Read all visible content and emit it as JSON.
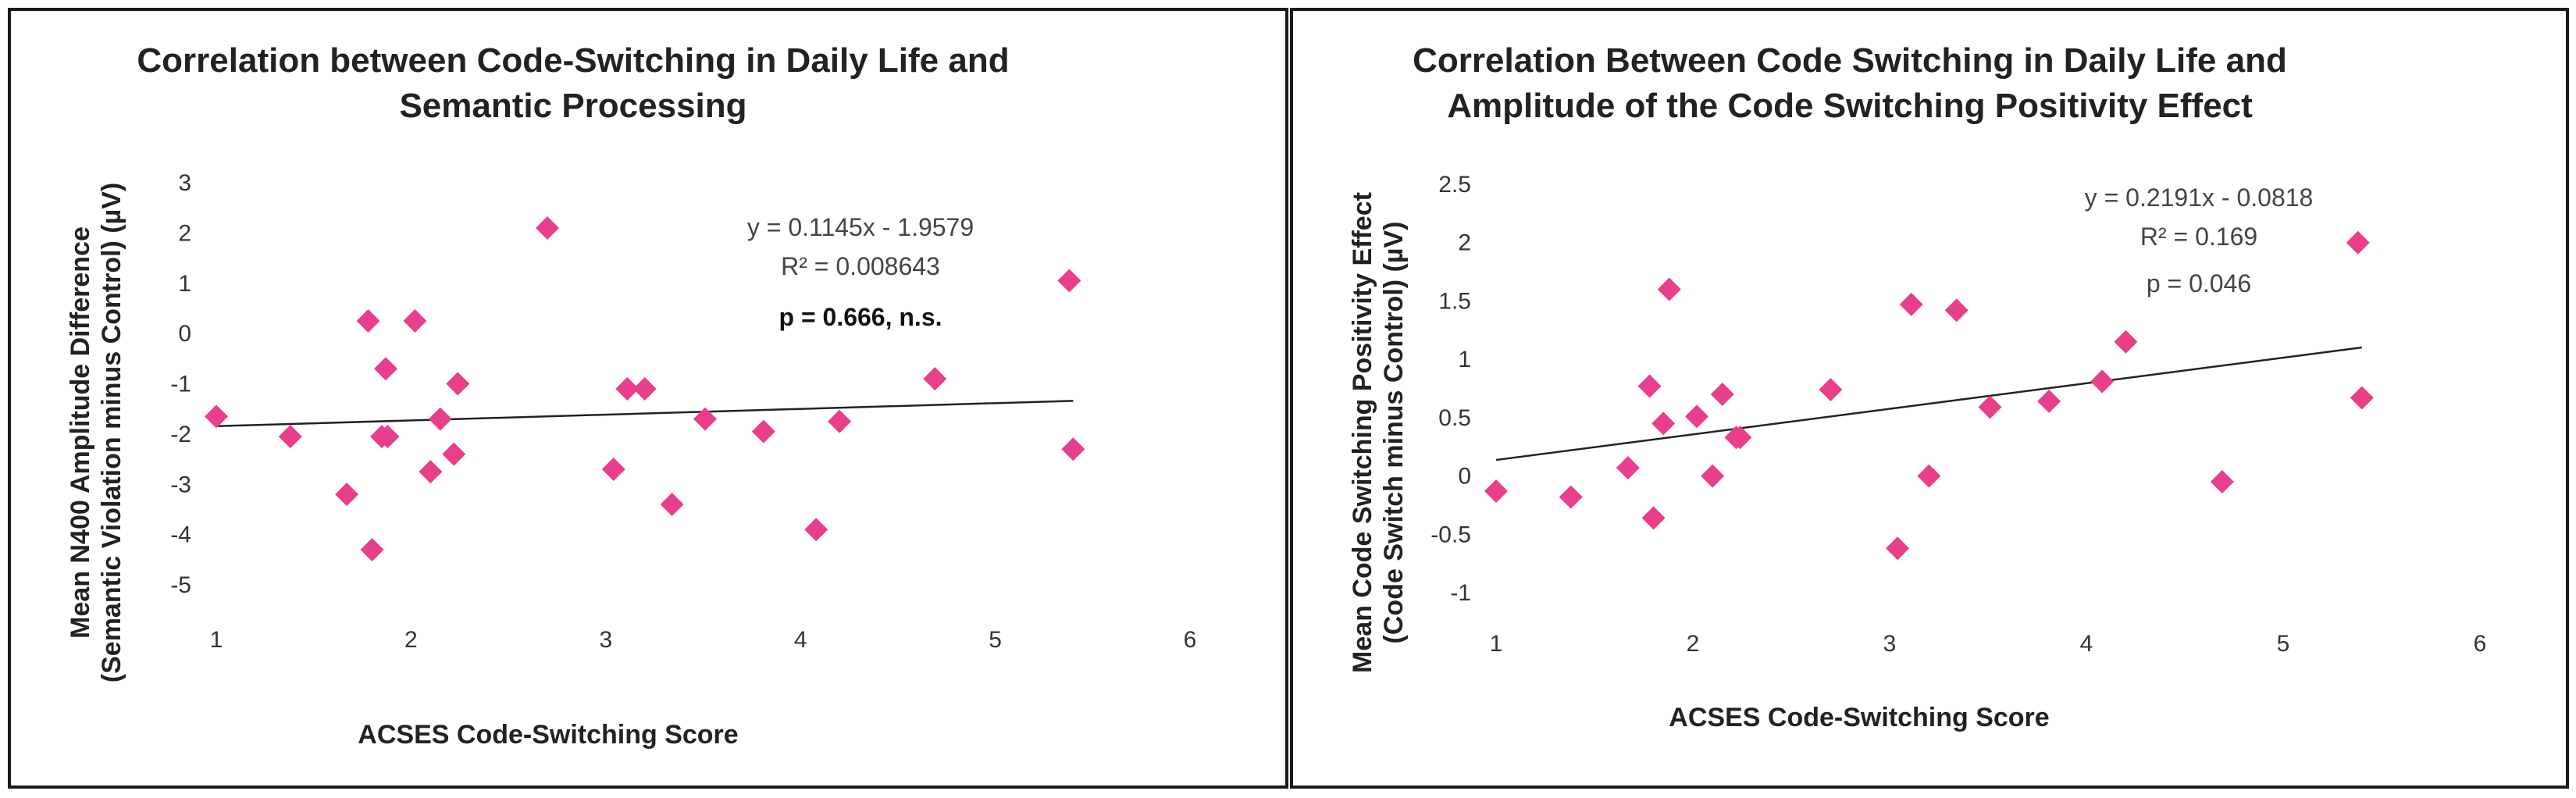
{
  "chart_data": [
    {
      "type": "scatter",
      "title": [
        "Correlation between Code-Switching in Daily Life and",
        "Semantic Processing"
      ],
      "xlabel": "ACSES Code-Switching Score",
      "ylabel": [
        "Mean N400 Amplitude Difference",
        "(Semantic Violation minus Control) (µV)"
      ],
      "xlim": [
        1,
        6
      ],
      "ylim": [
        -5,
        3
      ],
      "xticks": [
        "1",
        "2",
        "3",
        "4",
        "5",
        "6"
      ],
      "yticks": [
        "3",
        "2",
        "1",
        "0",
        "-1",
        "-2",
        "-3",
        "-4",
        "-5"
      ],
      "grid": false,
      "marker_color": "#e83e8c",
      "trend": {
        "slope": 0.1145,
        "intercept": -1.9579
      },
      "annotations": [
        "y = 0.1145x - 1.9579",
        "R² = 0.008643",
        "p = 0.666, n.s."
      ],
      "x": [
        1.0,
        1.38,
        1.67,
        1.78,
        1.8,
        1.85,
        1.87,
        1.88,
        2.02,
        2.1,
        2.15,
        2.22,
        2.24,
        2.7,
        3.04,
        3.11,
        3.2,
        3.34,
        3.51,
        3.81,
        4.08,
        4.2,
        4.69,
        5.38,
        5.4
      ],
      "y": [
        -1.65,
        -2.05,
        -3.2,
        0.25,
        -4.3,
        -2.05,
        -0.7,
        -2.05,
        0.25,
        -2.75,
        -1.7,
        -2.4,
        -1.0,
        2.1,
        -2.7,
        -1.1,
        -1.1,
        -3.4,
        -1.7,
        -1.95,
        -3.9,
        -1.75,
        -0.9,
        1.05,
        -2.3
      ]
    },
    {
      "type": "scatter",
      "title": [
        "Correlation Between Code Switching in Daily Life and",
        "Amplitude of the Code Switching Positivity Effect"
      ],
      "xlabel": "ACSES Code-Switching Score",
      "ylabel": [
        "Mean Code Switching Positivity Effect",
        "(Code Switch minus Control) (µV)"
      ],
      "xlim": [
        1,
        6
      ],
      "ylim": [
        -1,
        2.5
      ],
      "xticks": [
        "1",
        "2",
        "3",
        "4",
        "5",
        "6"
      ],
      "yticks": [
        "2.5",
        "2",
        "1.5",
        "1",
        "0.5",
        "0",
        "-0.5",
        "-1"
      ],
      "grid": false,
      "marker_color": "#e83e8c",
      "trend": {
        "slope": 0.2191,
        "intercept": -0.0818
      },
      "annotations": [
        "y = 0.2191x - 0.0818",
        "R² = 0.169",
        "p = 0.046"
      ],
      "x": [
        1.0,
        1.38,
        1.67,
        1.78,
        1.8,
        1.85,
        1.88,
        2.02,
        2.1,
        2.15,
        2.22,
        2.24,
        2.7,
        3.04,
        3.11,
        3.2,
        3.34,
        3.51,
        3.81,
        4.08,
        4.2,
        4.69,
        5.38,
        5.4
      ],
      "y": [
        -0.13,
        -0.18,
        0.07,
        0.77,
        -0.36,
        0.45,
        1.6,
        0.51,
        0.0,
        0.7,
        0.33,
        0.33,
        0.74,
        -0.62,
        1.47,
        0.0,
        1.42,
        0.59,
        0.64,
        0.81,
        1.15,
        -0.05,
        2.0,
        0.67
      ]
    }
  ]
}
